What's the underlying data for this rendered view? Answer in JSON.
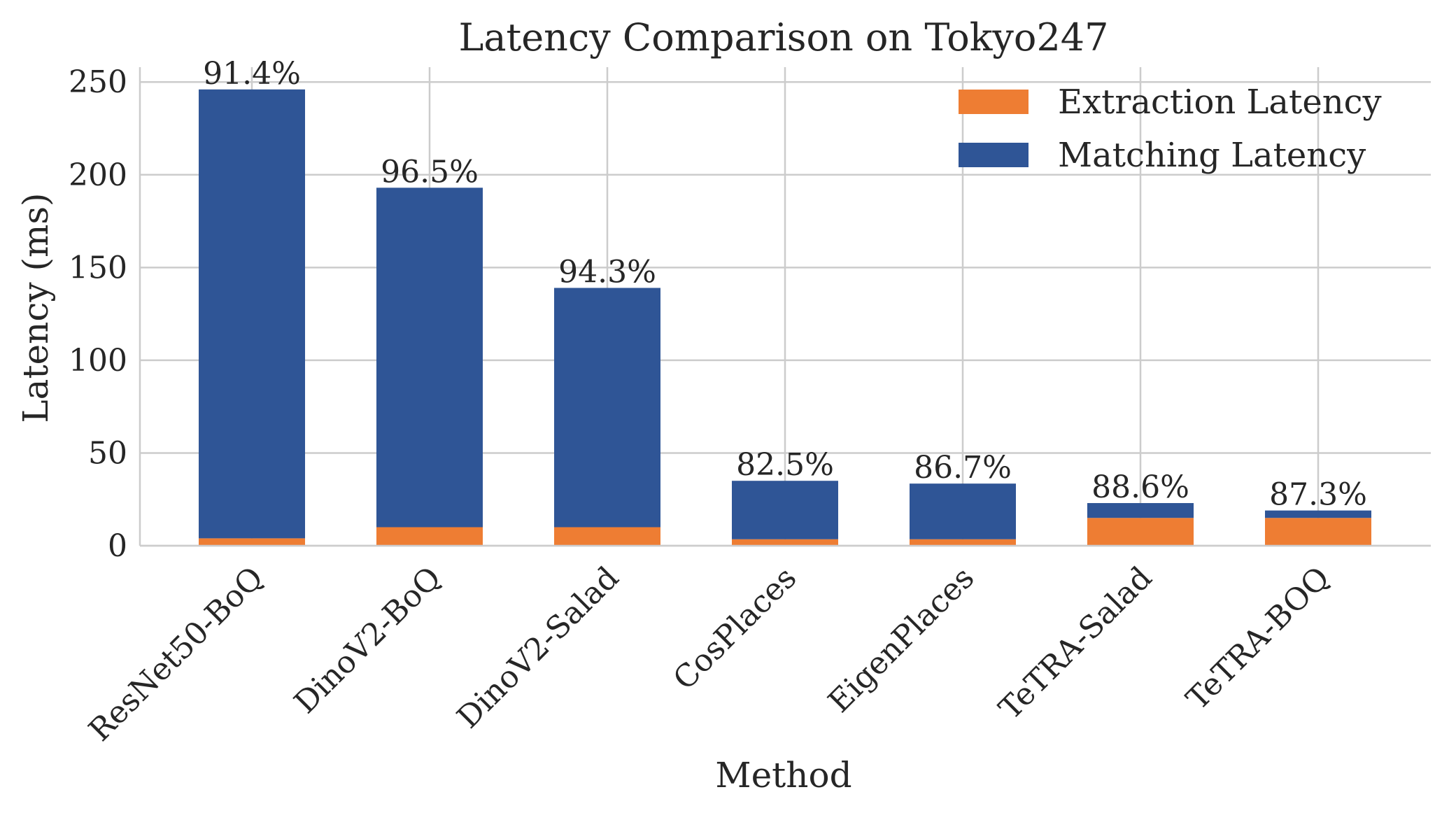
{
  "chart_data": {
    "type": "bar",
    "stacked": true,
    "title": "Latency Comparison on Tokyo247",
    "xlabel": "Method",
    "ylabel": "Latency (ms)",
    "categories": [
      "ResNet50-BoQ",
      "DinoV2-BoQ",
      "DinoV2-Salad",
      "CosPlaces",
      "EigenPlaces",
      "TeTRA-Salad",
      "TeTRA-BOQ"
    ],
    "series": [
      {
        "name": "Extraction Latency",
        "color": "#ee7d33",
        "values": [
          4,
          10,
          10,
          3.5,
          3.5,
          15,
          15
        ]
      },
      {
        "name": "Matching Latency",
        "color": "#2f5596",
        "values": [
          242,
          183,
          129,
          31.5,
          30,
          8,
          4
        ]
      }
    ],
    "bar_labels": [
      "91.4%",
      "96.5%",
      "94.3%",
      "82.5%",
      "86.7%",
      "88.6%",
      "87.3%"
    ],
    "ylim": [
      0,
      258
    ],
    "yticks": [
      0,
      50,
      100,
      150,
      200,
      250
    ],
    "grid": true,
    "legend_position": "top-right"
  }
}
